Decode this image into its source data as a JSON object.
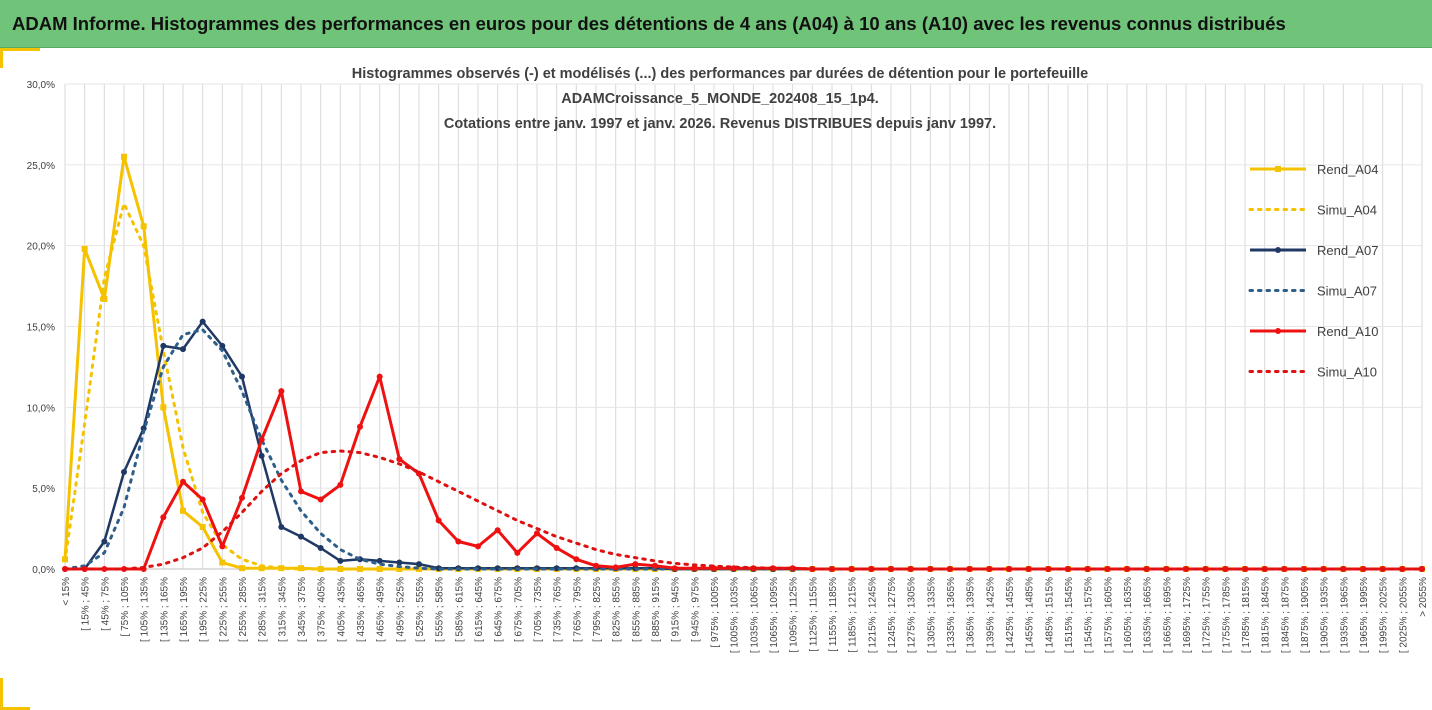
{
  "header": {
    "title": "ADAM Informe. Histogrammes des performances en euros pour des détentions de 4 ans (A04) à 10 ans (A10) avec les revenus connus distribués"
  },
  "chart_data": {
    "type": "line",
    "title_lines": [
      "Histogrammes observés (-) et modélisés (...) des performances par durées de détention pour le portefeuille",
      "ADAMCroissance_5_MONDE_202408_15_1p4.",
      "Cotations entre janv. 1997 et janv. 2026. Revenus DISTRIBUES depuis janv 1997."
    ],
    "ylim": [
      0,
      30
    ],
    "yticks": [
      "0,0%",
      "5,0%",
      "10,0%",
      "15,0%",
      "20,0%",
      "25,0%",
      "30,0%"
    ],
    "legend_position": "right",
    "categories": [
      "< 15%",
      "[ 15% ; 45%",
      "[ 45% ; 75%",
      "[ 75% ; 105%",
      "[ 105% ; 135%",
      "[ 135% ; 165%",
      "[ 165% ; 195%",
      "[ 195% ; 225%",
      "[ 225% ; 255%",
      "[ 255% ; 285%",
      "[ 285% ; 315%",
      "[ 315% ; 345%",
      "[ 345% ; 375%",
      "[ 375% ; 405%",
      "[ 405% ; 435%",
      "[ 435% ; 465%",
      "[ 465% ; 495%",
      "[ 495% ; 525%",
      "[ 525% ; 555%",
      "[ 555% ; 585%",
      "[ 585% ; 615%",
      "[ 615% ; 645%",
      "[ 645% ; 675%",
      "[ 675% ; 705%",
      "[ 705% ; 735%",
      "[ 735% ; 765%",
      "[ 765% ; 795%",
      "[ 795% ; 825%",
      "[ 825% ; 855%",
      "[ 855% ; 885%",
      "[ 885% ; 915%",
      "[ 915% ; 945%",
      "[ 945% ; 975%",
      "[ 975% ; 1005%",
      "[ 1005% ; 1035%",
      "[ 1035% ; 1065%",
      "[ 1065% ; 1095%",
      "[ 1095% ; 1125%",
      "[ 1125% ; 1155%",
      "[ 1155% ; 1185%",
      "[ 1185% ; 1215%",
      "[ 1215% ; 1245%",
      "[ 1245% ; 1275%",
      "[ 1275% ; 1305%",
      "[ 1305% ; 1335%",
      "[ 1335% ; 1365%",
      "[ 1365% ; 1395%",
      "[ 1395% ; 1425%",
      "[ 1425% ; 1455%",
      "[ 1455% ; 1485%",
      "[ 1485% ; 1515%",
      "[ 1515% ; 1545%",
      "[ 1545% ; 1575%",
      "[ 1575% ; 1605%",
      "[ 1605% ; 1635%",
      "[ 1635% ; 1665%",
      "[ 1665% ; 1695%",
      "[ 1695% ; 1725%",
      "[ 1725% ; 1755%",
      "[ 1755% ; 1785%",
      "[ 1785% ; 1815%",
      "[ 1815% ; 1845%",
      "[ 1845% ; 1875%",
      "[ 1875% ; 1905%",
      "[ 1905% ; 1935%",
      "[ 1935% ; 1965%",
      "[ 1965% ; 1995%",
      "[ 1995% ; 2025%",
      "[ 2025% ; 2055%",
      "> 2055%"
    ],
    "series": [
      {
        "name": "Rend_A04",
        "color": "#f5c200",
        "style": "solid",
        "marker": "square",
        "values": [
          0.6,
          19.8,
          16.7,
          25.5,
          21.2,
          10.0,
          3.6,
          2.6,
          0.4,
          0.05,
          0.05,
          0.05,
          0.05,
          0,
          0,
          0,
          0,
          0,
          0,
          0,
          0,
          0,
          0,
          0,
          0,
          0,
          0,
          0,
          0,
          0,
          0,
          0,
          0,
          0,
          0,
          0,
          0,
          0,
          0,
          0,
          0,
          0,
          0,
          0,
          0,
          0,
          0,
          0,
          0,
          0,
          0,
          0,
          0,
          0,
          0,
          0,
          0,
          0,
          0,
          0,
          0,
          0,
          0,
          0,
          0,
          0,
          0,
          0,
          0,
          0
        ]
      },
      {
        "name": "Simu_A04",
        "color": "#f5c200",
        "style": "dotted",
        "marker": "none",
        "values": [
          0.5,
          9.0,
          18.0,
          22.6,
          20.0,
          13.5,
          7.5,
          3.5,
          1.5,
          0.6,
          0.2,
          0.05,
          0,
          0,
          0,
          0,
          0,
          0,
          0,
          0,
          0,
          0,
          0,
          0,
          0,
          0,
          0,
          0,
          0,
          0,
          0,
          0,
          0,
          0,
          0,
          0,
          0,
          0,
          0,
          0,
          0,
          0,
          0,
          0,
          0,
          0,
          0,
          0,
          0,
          0,
          0,
          0,
          0,
          0,
          0,
          0,
          0,
          0,
          0,
          0,
          0,
          0,
          0,
          0,
          0,
          0,
          0,
          0,
          0,
          0
        ]
      },
      {
        "name": "Rend_A07",
        "color": "#1f3864",
        "style": "solid",
        "marker": "circle",
        "values": [
          0,
          0,
          1.7,
          6.0,
          8.7,
          13.8,
          13.6,
          15.3,
          13.8,
          11.9,
          7.0,
          2.6,
          2.0,
          1.3,
          0.5,
          0.6,
          0.5,
          0.4,
          0.3,
          0.05,
          0.05,
          0.05,
          0.05,
          0.05,
          0.05,
          0.05,
          0.05,
          0.05,
          0.05,
          0.05,
          0.05,
          0,
          0,
          0,
          0,
          0,
          0,
          0,
          0,
          0,
          0,
          0,
          0,
          0,
          0,
          0,
          0,
          0,
          0,
          0,
          0,
          0,
          0,
          0,
          0,
          0,
          0,
          0,
          0,
          0,
          0,
          0,
          0,
          0,
          0,
          0,
          0,
          0,
          0,
          0
        ]
      },
      {
        "name": "Simu_A07",
        "color": "#2e5f8a",
        "style": "dotted",
        "marker": "none",
        "values": [
          0,
          0.2,
          1.0,
          3.8,
          8.5,
          12.5,
          14.5,
          14.8,
          13.5,
          11.0,
          8.0,
          5.5,
          3.6,
          2.2,
          1.2,
          0.6,
          0.3,
          0.15,
          0.05,
          0,
          0,
          0,
          0,
          0,
          0,
          0,
          0,
          0,
          0,
          0,
          0,
          0,
          0,
          0,
          0,
          0,
          0,
          0,
          0,
          0,
          0,
          0,
          0,
          0,
          0,
          0,
          0,
          0,
          0,
          0,
          0,
          0,
          0,
          0,
          0,
          0,
          0,
          0,
          0,
          0,
          0,
          0,
          0,
          0,
          0,
          0,
          0,
          0,
          0,
          0
        ]
      },
      {
        "name": "Rend_A10",
        "color": "#ee1111",
        "style": "solid",
        "marker": "circle",
        "values": [
          0,
          0,
          0,
          0,
          0,
          3.2,
          5.4,
          4.3,
          1.4,
          4.4,
          8.0,
          11.0,
          4.8,
          4.3,
          5.2,
          8.8,
          11.9,
          6.8,
          5.9,
          3.0,
          1.7,
          1.4,
          2.4,
          1.0,
          2.2,
          1.3,
          0.6,
          0.2,
          0.1,
          0.3,
          0.2,
          0.05,
          0.05,
          0.05,
          0.05,
          0.05,
          0.05,
          0.05,
          0,
          0,
          0,
          0,
          0,
          0,
          0,
          0,
          0,
          0,
          0,
          0,
          0,
          0,
          0,
          0,
          0,
          0,
          0,
          0,
          0,
          0,
          0,
          0,
          0,
          0,
          0,
          0,
          0,
          0,
          0,
          0
        ]
      },
      {
        "name": "Simu_A10",
        "color": "#dd1111",
        "style": "dotted",
        "marker": "none",
        "values": [
          0,
          0,
          0,
          0,
          0.1,
          0.3,
          0.7,
          1.3,
          2.3,
          3.5,
          4.8,
          5.9,
          6.7,
          7.2,
          7.3,
          7.2,
          6.9,
          6.5,
          6.0,
          5.4,
          4.8,
          4.2,
          3.6,
          3.0,
          2.5,
          2.0,
          1.6,
          1.2,
          0.9,
          0.7,
          0.5,
          0.35,
          0.25,
          0.18,
          0.12,
          0.08,
          0.05,
          0.03,
          0,
          0,
          0,
          0,
          0,
          0,
          0,
          0,
          0,
          0,
          0,
          0,
          0,
          0,
          0,
          0,
          0,
          0,
          0,
          0,
          0,
          0,
          0,
          0,
          0,
          0,
          0,
          0,
          0,
          0,
          0,
          0
        ]
      }
    ]
  }
}
